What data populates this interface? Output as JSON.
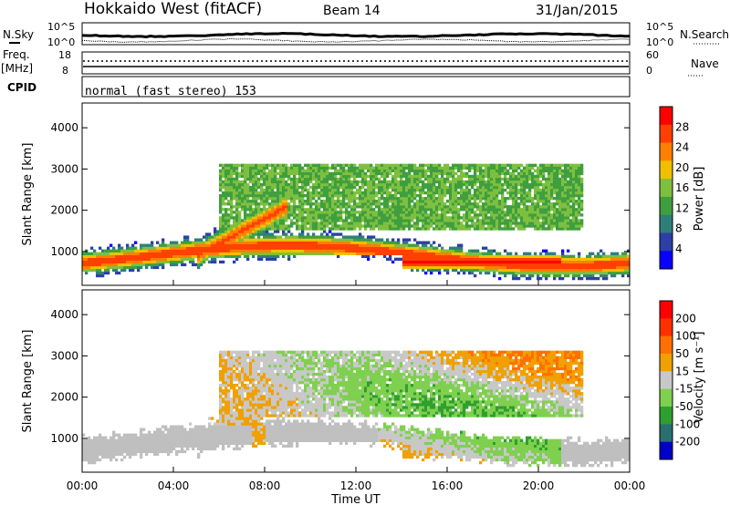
{
  "header": {
    "station": "Hokkaido West (fitACF)",
    "beam": "Beam 14",
    "date": "31/Jan/2015"
  },
  "top_panels": {
    "nsky_label": "N.Sky",
    "nsearch_label": "N.Search",
    "nsky_ticks": [
      "10^5",
      "10^0"
    ],
    "nsearch_ticks": [
      "10^5",
      "10^0"
    ],
    "freq_label": "Freq.",
    "freq_unit": "[MHz]",
    "freq_ticks": [
      "18",
      "8"
    ],
    "nave_label": "Nave",
    "nave_ticks": [
      "60",
      "0"
    ],
    "cpid_label": "CPID",
    "cpid_text": "normal (fast stereo) 153"
  },
  "chart_data": [
    {
      "type": "heatmap",
      "name": "power",
      "xlabel": "Time UT",
      "ylabel": "Slant Range [km]",
      "x_ticks": [
        "00:00",
        "04:00",
        "08:00",
        "12:00",
        "16:00",
        "20:00",
        "00:00"
      ],
      "xlim_hours": [
        0,
        24
      ],
      "y_ticks": [
        "1000",
        "2000",
        "3000",
        "4000"
      ],
      "ylim": [
        180,
        4600
      ],
      "colorbar": {
        "label": "Power [dB]",
        "tick_labels": [
          "28",
          "24",
          "20",
          "16",
          "12",
          "8",
          "4"
        ],
        "range": [
          0,
          30
        ],
        "colors": [
          "#0a00ff",
          "#2d3fa6",
          "#2e7f7a",
          "#3f9f3f",
          "#7fbf3f",
          "#f0c000",
          "#ff8000",
          "#ff4000",
          "#ff0000"
        ]
      }
    },
    {
      "type": "heatmap",
      "name": "velocity",
      "xlabel": "Time UT",
      "ylabel": "Slant Range [km]",
      "x_ticks": [
        "00:00",
        "04:00",
        "08:00",
        "12:00",
        "16:00",
        "20:00",
        "00:00"
      ],
      "xlim_hours": [
        0,
        24
      ],
      "y_ticks": [
        "1000",
        "2000",
        "3000",
        "4000"
      ],
      "ylim": [
        180,
        4600
      ],
      "colorbar": {
        "label": "Velocity [m s⁻¹]",
        "tick_labels": [
          "200",
          "100",
          "50",
          "15",
          "-15",
          "-50",
          "-100",
          "-200"
        ],
        "range": [
          -250,
          250
        ],
        "colors": [
          "#0000c8",
          "#2a6f6f",
          "#2f9f2f",
          "#7fd04f",
          "#c8c8c8",
          "#f0a000",
          "#ff7000",
          "#ff3000",
          "#ff0000"
        ]
      },
      "ground_scatter_color": "#bfbfbf"
    }
  ],
  "footer": {
    "xlabel": "Time UT"
  }
}
